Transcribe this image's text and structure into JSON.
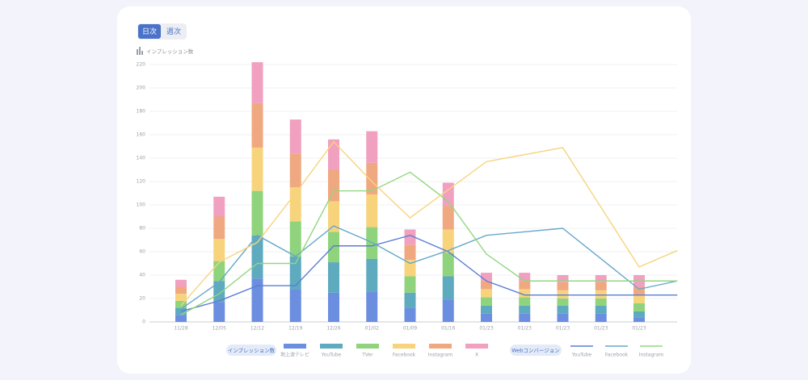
{
  "toggle": [
    "日次",
    "週次"
  ],
  "chart_data": {
    "type": "bar",
    "stacked": true,
    "y_label": "インプレッション数",
    "legend_groups": [
      "インプレッション数",
      "Webコンバージョン"
    ],
    "categories": [
      "11/28",
      "12/05",
      "12/12",
      "12/19",
      "12/26",
      "01/02",
      "01/09",
      "01/16",
      "01/23",
      "01/23",
      "01/23",
      "01/23",
      "01/23",
      null
    ],
    "ylim": [
      0,
      220
    ],
    "yticks": [
      0,
      20,
      40,
      60,
      80,
      100,
      120,
      140,
      160,
      180,
      200,
      220
    ],
    "grid": true,
    "series": [
      {
        "name": "地上波テレビ",
        "type": "bar",
        "color": "#6b8ee0",
        "values": [
          6,
          17,
          37,
          28,
          25,
          26,
          12,
          19,
          7,
          7,
          7,
          7,
          4,
          null
        ]
      },
      {
        "name": "YouTube",
        "type": "bar",
        "color": "#5eaabf",
        "values": [
          6,
          18,
          37,
          28,
          26,
          28,
          13,
          20,
          7,
          7,
          7,
          7,
          5,
          null
        ]
      },
      {
        "name": "TVer",
        "type": "bar",
        "color": "#8fd47c",
        "values": [
          6,
          17,
          38,
          30,
          26,
          27,
          14,
          20,
          7,
          7,
          6,
          6,
          7,
          null
        ]
      },
      {
        "name": "Facebook",
        "type": "bar",
        "color": "#f7d47c",
        "values": [
          6,
          19,
          37,
          29,
          26,
          28,
          14,
          20,
          7,
          7,
          7,
          7,
          7,
          null
        ]
      },
      {
        "name": "Instagram",
        "type": "bar",
        "color": "#f0a880",
        "values": [
          6,
          19,
          38,
          29,
          27,
          27,
          13,
          20,
          7,
          7,
          7,
          7,
          7,
          null
        ]
      },
      {
        "name": "X",
        "type": "bar",
        "color": "#f1a0c0",
        "values": [
          6,
          17,
          35,
          29,
          26,
          27,
          13,
          20,
          7,
          7,
          6,
          6,
          10,
          null
        ]
      },
      {
        "name": "YouTube",
        "type": "line",
        "color": "#5b7dd6",
        "values": [
          9,
          18,
          31,
          31,
          65,
          65,
          74,
          60,
          35,
          23,
          23,
          23,
          23,
          23
        ]
      },
      {
        "name": "Facebook",
        "type": "line",
        "color": "#66a8c8",
        "values": [
          11,
          34,
          74,
          56,
          82,
          68,
          50,
          61,
          74,
          77,
          80,
          54,
          28,
          35
        ]
      },
      {
        "name": "Instagram",
        "type": "line",
        "color": "#92d680",
        "values": [
          6,
          24,
          50,
          50,
          112,
          112,
          128,
          103,
          58,
          35,
          35,
          35,
          35,
          35
        ]
      },
      {
        "type": "line",
        "color": "#f7d47c",
        "values": [
          14,
          51,
          68,
          110,
          154,
          120,
          89,
          113,
          137,
          143,
          149,
          98,
          47,
          61
        ]
      }
    ]
  }
}
